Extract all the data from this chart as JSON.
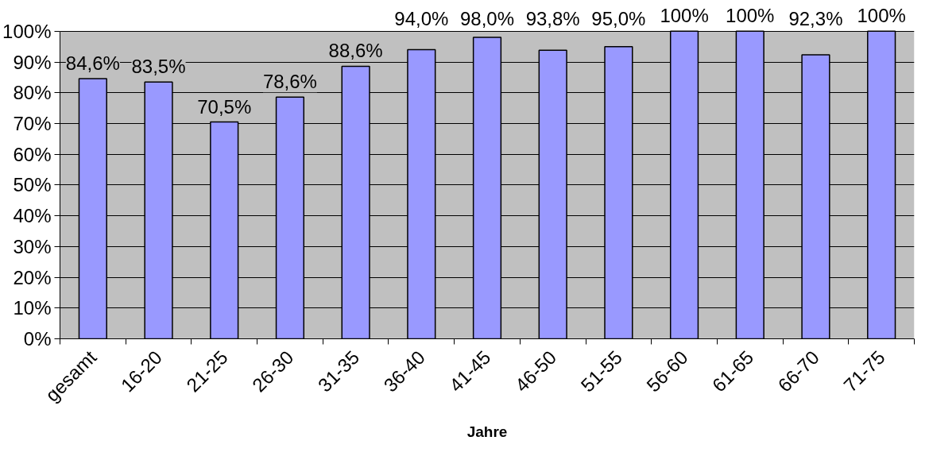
{
  "chart_data": {
    "type": "bar",
    "xlabel": "Jahre",
    "categories": [
      "gesamt",
      "16-20",
      "21-25",
      "26-30",
      "31-35",
      "36-40",
      "41-45",
      "46-50",
      "51-55",
      "56-60",
      "61-65",
      "66-70",
      "71-75"
    ],
    "values": [
      84.6,
      83.5,
      70.5,
      78.6,
      88.6,
      94.0,
      98.0,
      93.8,
      95.0,
      100,
      100,
      92.3,
      100
    ],
    "value_labels": [
      "84,6%",
      "83,5%",
      "70,5%",
      "78,6%",
      "88,6%",
      "94,0%",
      "98,0%",
      "93,8%",
      "95,0%",
      "100%",
      "100%",
      "92,3%",
      "100%"
    ],
    "color": "#9999ff",
    "ylim": [
      0,
      100
    ],
    "yticks": [
      {
        "value": 0,
        "label": "0%"
      },
      {
        "value": 10,
        "label": "10%"
      },
      {
        "value": 20,
        "label": "20%"
      },
      {
        "value": 30,
        "label": "30%"
      },
      {
        "value": 40,
        "label": "40%"
      },
      {
        "value": 50,
        "label": "50%"
      },
      {
        "value": 60,
        "label": "60%"
      },
      {
        "value": 70,
        "label": "70%"
      },
      {
        "value": 80,
        "label": "80%"
      },
      {
        "value": 90,
        "label": "90%"
      },
      {
        "value": 100,
        "label": "100%"
      }
    ],
    "grid": "y"
  }
}
